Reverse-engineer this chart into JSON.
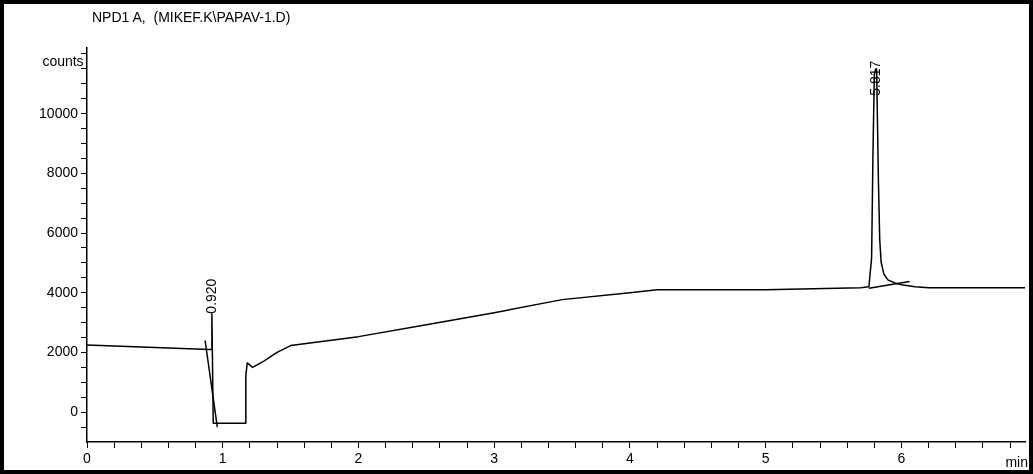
{
  "chart_data": {
    "type": "line",
    "title": "NPD1 A,  (MIKEF.K\\PAPAV-1.D)",
    "ylabel": "counts",
    "xlabel": "min",
    "marker": "none",
    "line_style": "solid",
    "xlim": [
      0,
      6.91
    ],
    "ylim": [
      -1000,
      12200
    ],
    "xticks": [
      0,
      {
        "value": 0.2,
        "label": null
      },
      {
        "value": 0.4,
        "label": null
      },
      {
        "value": 0.6,
        "label": null
      },
      {
        "value": 0.8,
        "label": null
      },
      1,
      {
        "value": 1.2,
        "label": null
      },
      {
        "value": 1.4,
        "label": null
      },
      {
        "value": 1.6,
        "label": null
      },
      {
        "value": 1.8,
        "label": null
      },
      2,
      {
        "value": 2.2,
        "label": null
      },
      {
        "value": 2.4,
        "label": null
      },
      {
        "value": 2.6,
        "label": null
      },
      {
        "value": 2.8,
        "label": null
      },
      3,
      {
        "value": 3.2,
        "label": null
      },
      {
        "value": 3.4,
        "label": null
      },
      {
        "value": 3.6,
        "label": null
      },
      {
        "value": 3.8,
        "label": null
      },
      4,
      {
        "value": 4.2,
        "label": null
      },
      {
        "value": 4.4,
        "label": null
      },
      {
        "value": 4.6,
        "label": null
      },
      {
        "value": 4.8,
        "label": null
      },
      5,
      {
        "value": 5.2,
        "label": null
      },
      {
        "value": 5.4,
        "label": null
      },
      {
        "value": 5.6,
        "label": null
      },
      {
        "value": 5.8,
        "label": null
      },
      6,
      {
        "value": 6.2,
        "label": null
      },
      {
        "value": 6.4,
        "label": null
      },
      {
        "value": 6.6,
        "label": null
      },
      {
        "value": 6.8,
        "label": null
      }
    ],
    "yticks": [
      {
        "value": -500,
        "label": null
      },
      0,
      {
        "value": 500,
        "label": null
      },
      {
        "value": 1000,
        "label": null
      },
      {
        "value": 1500,
        "label": null
      },
      2000,
      {
        "value": 2500,
        "label": null
      },
      {
        "value": 3000,
        "label": null
      },
      {
        "value": 3500,
        "label": null
      },
      4000,
      {
        "value": 4500,
        "label": null
      },
      {
        "value": 5000,
        "label": null
      },
      {
        "value": 5500,
        "label": null
      },
      6000,
      {
        "value": 6500,
        "label": null
      },
      {
        "value": 7000,
        "label": null
      },
      {
        "value": 7500,
        "label": null
      },
      8000,
      {
        "value": 8500,
        "label": null
      },
      {
        "value": 9000,
        "label": null
      },
      {
        "value": 9500,
        "label": null
      },
      10000,
      {
        "value": 10500,
        "label": null
      },
      {
        "value": 11000,
        "label": null
      },
      {
        "value": 11500,
        "label": null
      },
      {
        "value": 12000,
        "label": null
      }
    ],
    "series": [
      {
        "color": "#000000",
        "x": [
          0,
          0.3,
          0.6,
          0.9,
          0.915,
          0.92,
          0.93,
          1.17,
          1.17,
          1.18,
          1.22,
          1.3,
          1.4,
          1.5,
          2,
          2.5,
          3,
          3.5,
          4,
          4.2,
          5,
          5.7,
          5.76,
          5.78,
          5.79,
          5.8,
          5.81,
          5.817,
          5.83,
          5.84,
          5.85,
          5.87,
          5.9,
          5.95,
          6.0,
          6.1,
          6.2,
          6.5,
          6.91
        ],
        "values": [
          2250,
          2200,
          2150,
          2100,
          2100,
          3300,
          -370,
          -370,
          1200,
          1650,
          1500,
          1700,
          2000,
          2230,
          2530,
          2930,
          3330,
          3770,
          4000,
          4100,
          4100,
          4170,
          4200,
          5170,
          8670,
          11300,
          11500,
          11500,
          7770,
          5770,
          5030,
          4630,
          4430,
          4330,
          4270,
          4200,
          4170,
          4170,
          4170
        ]
      },
      {
        "color": "#000000",
        "x": [
          0.87,
          0.96
        ],
        "values": [
          2400,
          -500
        ]
      },
      {
        "color": "#000000",
        "x": [
          5.76,
          6.06
        ],
        "values": [
          4150,
          4380
        ]
      }
    ],
    "annotations": [
      {
        "text": "0.920",
        "x": 0.92,
        "y": 3300
      },
      {
        "text": "5.817",
        "x": 5.817,
        "y": 10600
      }
    ]
  }
}
